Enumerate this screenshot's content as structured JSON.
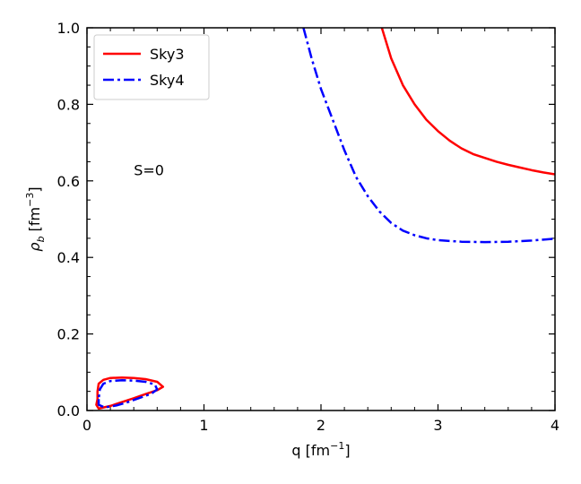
{
  "chart_data": {
    "type": "line",
    "annotation": "S=0",
    "xlim": [
      0,
      4
    ],
    "ylim": [
      0,
      1.0
    ],
    "x_ticks": [
      "0",
      "1",
      "2",
      "3",
      "4"
    ],
    "y_ticks": [
      "0.0",
      "0.2",
      "0.4",
      "0.6",
      "0.8",
      "1.0"
    ],
    "xlabel": {
      "base": "q [fm",
      "sup": "−1",
      "tail": "]"
    },
    "ylabel": {
      "base": "ρ",
      "sub": "b",
      "mid": " [fm",
      "sup": "−3",
      "tail": "]"
    },
    "legend_position": "upper-left",
    "series": [
      {
        "name": "Sky3",
        "color": "#ff0000",
        "style": "solid",
        "segments": [
          [
            [
              2.52,
              1.0
            ],
            [
              2.6,
              0.92
            ],
            [
              2.7,
              0.85
            ],
            [
              2.8,
              0.8
            ],
            [
              2.9,
              0.76
            ],
            [
              3.0,
              0.73
            ],
            [
              3.1,
              0.705
            ],
            [
              3.2,
              0.685
            ],
            [
              3.3,
              0.67
            ],
            [
              3.4,
              0.66
            ],
            [
              3.5,
              0.65
            ],
            [
              3.6,
              0.642
            ],
            [
              3.7,
              0.635
            ],
            [
              3.8,
              0.628
            ],
            [
              3.9,
              0.622
            ],
            [
              4.0,
              0.617
            ]
          ],
          [
            [
              0.09,
              0.03
            ],
            [
              0.08,
              0.015
            ],
            [
              0.1,
              0.005
            ],
            [
              0.2,
              0.012
            ],
            [
              0.3,
              0.022
            ],
            [
              0.4,
              0.032
            ],
            [
              0.5,
              0.043
            ],
            [
              0.6,
              0.053
            ],
            [
              0.65,
              0.062
            ],
            [
              0.6,
              0.075
            ],
            [
              0.5,
              0.082
            ],
            [
              0.4,
              0.085
            ],
            [
              0.3,
              0.086
            ],
            [
              0.2,
              0.085
            ],
            [
              0.14,
              0.08
            ],
            [
              0.1,
              0.07
            ],
            [
              0.09,
              0.05
            ],
            [
              0.09,
              0.03
            ]
          ]
        ]
      },
      {
        "name": "Sky4",
        "color": "#0000ff",
        "style": "dashdot",
        "segments": [
          [
            [
              1.85,
              1.0
            ],
            [
              1.92,
              0.92
            ],
            [
              2.0,
              0.84
            ],
            [
              2.1,
              0.76
            ],
            [
              2.2,
              0.68
            ],
            [
              2.3,
              0.61
            ],
            [
              2.4,
              0.56
            ],
            [
              2.5,
              0.52
            ],
            [
              2.6,
              0.49
            ],
            [
              2.7,
              0.47
            ],
            [
              2.8,
              0.458
            ],
            [
              2.9,
              0.45
            ],
            [
              3.0,
              0.445
            ],
            [
              3.2,
              0.441
            ],
            [
              3.4,
              0.44
            ],
            [
              3.6,
              0.441
            ],
            [
              3.8,
              0.444
            ],
            [
              4.0,
              0.449
            ]
          ],
          [
            [
              0.1,
              0.03
            ],
            [
              0.1,
              0.015
            ],
            [
              0.15,
              0.008
            ],
            [
              0.25,
              0.013
            ],
            [
              0.35,
              0.022
            ],
            [
              0.45,
              0.033
            ],
            [
              0.55,
              0.044
            ],
            [
              0.6,
              0.055
            ],
            [
              0.58,
              0.068
            ],
            [
              0.5,
              0.075
            ],
            [
              0.4,
              0.078
            ],
            [
              0.3,
              0.079
            ],
            [
              0.2,
              0.077
            ],
            [
              0.14,
              0.07
            ],
            [
              0.11,
              0.055
            ],
            [
              0.1,
              0.03
            ]
          ]
        ]
      }
    ]
  }
}
